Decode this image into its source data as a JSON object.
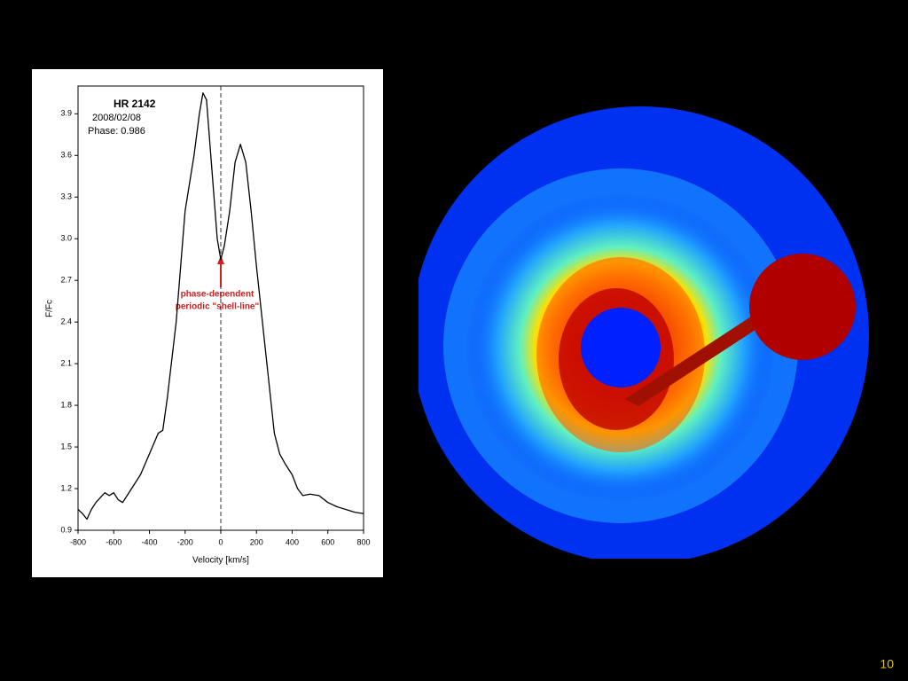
{
  "chart_data": {
    "type": "line",
    "title": "HR 2142",
    "annotations": [
      "2008/02/08",
      "Phase: 0.986",
      "phase-dependent",
      "periodic \"shell-line\""
    ],
    "x_label": "Velocity [km/s]",
    "y_label": "F/Fc",
    "x": [
      -800,
      -775,
      -750,
      -725,
      -700,
      -650,
      -625,
      -600,
      -575,
      -550,
      -525,
      -500,
      -450,
      -400,
      -350,
      -325,
      -300,
      -250,
      -200,
      -150,
      -120,
      -100,
      -80,
      -50,
      -20,
      0,
      20,
      50,
      80,
      110,
      140,
      170,
      200,
      250,
      300,
      330,
      360,
      400,
      430,
      460,
      500,
      550,
      600,
      650,
      700,
      750,
      800
    ],
    "series": [
      {
        "color": "#000000",
        "values": [
          1.05,
          1.02,
          0.98,
          1.05,
          1.1,
          1.17,
          1.15,
          1.17,
          1.12,
          1.1,
          1.15,
          1.2,
          1.3,
          1.45,
          1.6,
          1.62,
          1.85,
          2.4,
          3.2,
          3.6,
          3.9,
          4.05,
          4.0,
          3.5,
          3.0,
          2.85,
          2.95,
          3.2,
          3.55,
          3.68,
          3.55,
          3.2,
          2.8,
          2.2,
          1.6,
          1.45,
          1.38,
          1.3,
          1.2,
          1.15,
          1.16,
          1.15,
          1.1,
          1.07,
          1.05,
          1.03,
          1.02
        ]
      }
    ],
    "xlim": [
      -800,
      800
    ],
    "ylim": [
      0.9,
      4.1
    ],
    "xticks": [
      -800,
      -600,
      -400,
      -200,
      0,
      200,
      400,
      600,
      800
    ],
    "yticks": [
      0.9,
      1.2,
      1.5,
      1.8,
      2.1,
      2.4,
      2.7,
      {
        "value": 3,
        "label": "3.0"
      },
      3.3,
      3.6,
      3.9
    ]
  },
  "page_number": "10"
}
